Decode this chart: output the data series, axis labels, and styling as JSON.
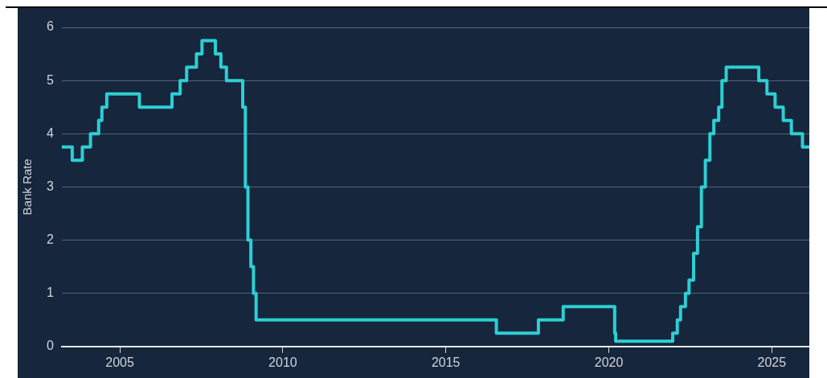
{
  "chart_data": {
    "type": "step",
    "ylabel": "Bank Rate",
    "x": [
      2003.22,
      2003.54,
      2003.85,
      2004.1,
      2004.35,
      2004.45,
      2004.6,
      2005.6,
      2006.6,
      2006.85,
      2007.05,
      2007.35,
      2007.52,
      2007.93,
      2008.1,
      2008.27,
      2008.77,
      2008.85,
      2008.93,
      2009.02,
      2009.1,
      2009.18,
      2016.55,
      2017.84,
      2018.6,
      2020.18,
      2020.21,
      2021.96,
      2022.1,
      2022.2,
      2022.35,
      2022.46,
      2022.6,
      2022.72,
      2022.84,
      2022.96,
      2023.1,
      2023.22,
      2023.37,
      2023.47,
      2023.6,
      2024.6,
      2024.85,
      2025.1,
      2025.35,
      2025.6,
      2025.94,
      2026.15
    ],
    "series": [
      {
        "color": "#2ccfd3",
        "values": [
          3.75,
          3.5,
          3.75,
          4.0,
          4.25,
          4.5,
          4.75,
          4.5,
          4.75,
          5.0,
          5.25,
          5.5,
          5.75,
          5.5,
          5.25,
          5.0,
          4.5,
          3.0,
          2.0,
          1.5,
          1.0,
          0.5,
          0.25,
          0.5,
          0.75,
          0.25,
          0.1,
          0.25,
          0.5,
          0.75,
          1.0,
          1.25,
          1.75,
          2.25,
          3.0,
          3.5,
          4.0,
          4.25,
          4.5,
          5.0,
          5.25,
          5.0,
          4.75,
          4.5,
          4.25,
          4.0,
          3.75,
          3.75
        ]
      }
    ],
    "xlim": [
      2003.22,
      2026.15
    ],
    "xticks": [
      2005,
      2010,
      2015,
      2020,
      2025
    ],
    "ylim": [
      0,
      6
    ],
    "yticks": [
      0,
      1,
      2,
      3,
      4,
      5,
      6
    ],
    "grid": "y",
    "marker": "none",
    "line_style": "solid",
    "legend": false
  }
}
